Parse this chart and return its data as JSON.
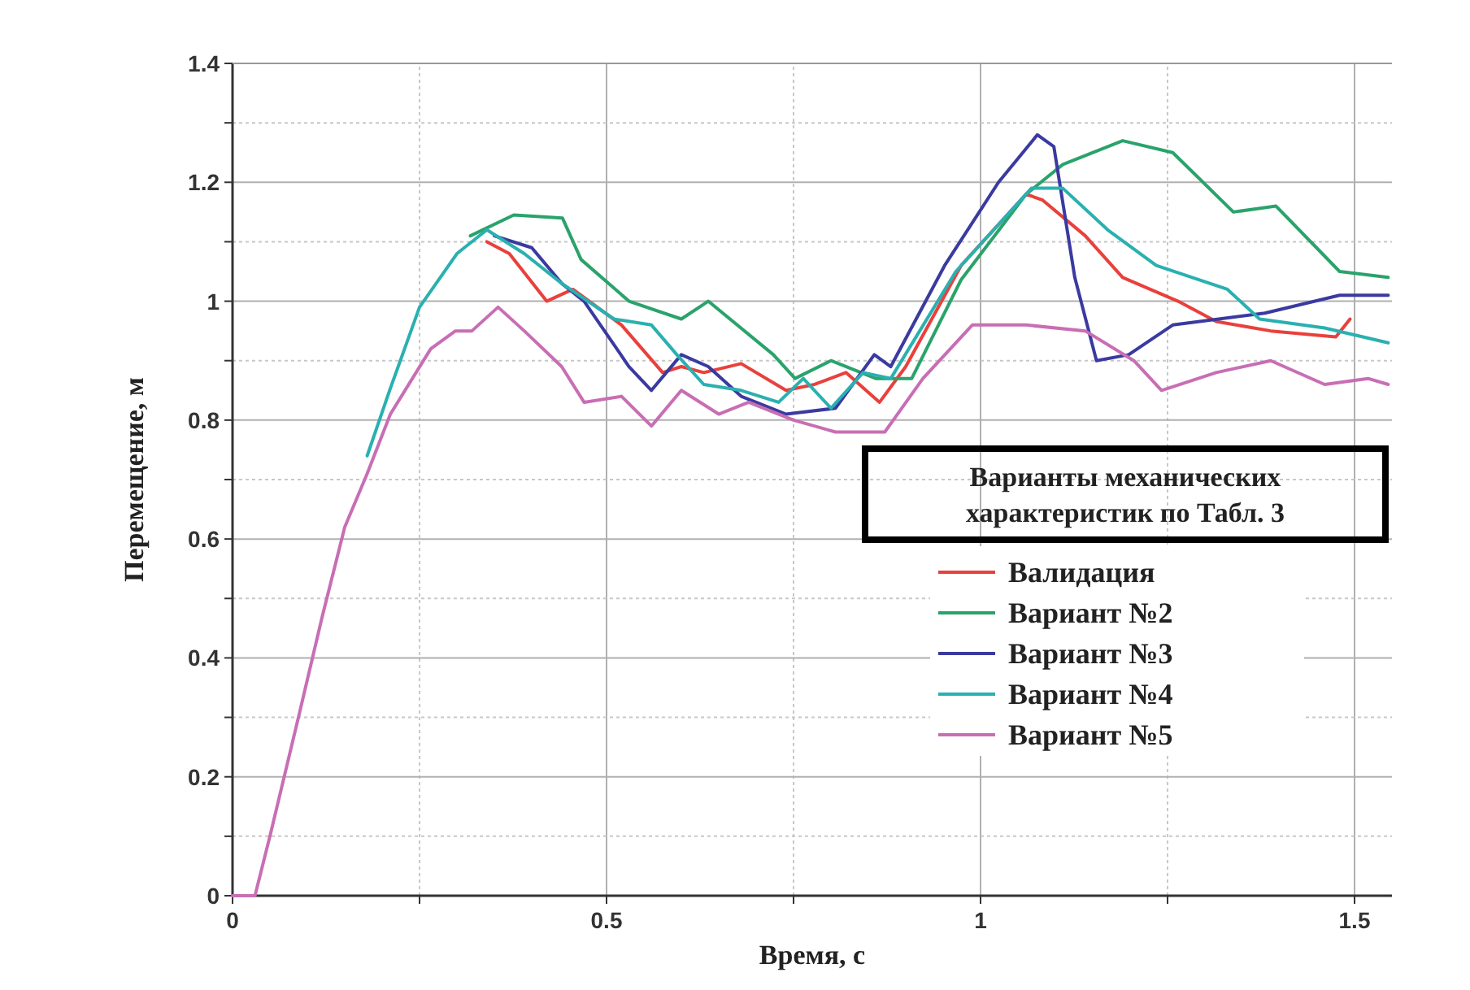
{
  "chart_data": {
    "type": "line",
    "xlabel": "Время, с",
    "ylabel": "Перемещение, м",
    "legend_title": "Варианты механических характеристик по Табл. 3",
    "legend": "bottom right",
    "grid": true,
    "line_style": "solid",
    "marker": "none",
    "xlim": [
      0,
      1.55
    ],
    "ylim": [
      0,
      1.4
    ],
    "xticks": [
      0,
      {
        "value": 0.25,
        "label": null
      },
      0.5,
      {
        "value": 0.75,
        "label": null
      },
      1,
      {
        "value": 1.25,
        "label": null
      },
      1.5
    ],
    "yticks": [
      0,
      {
        "value": 0.1,
        "label": null
      },
      0.2,
      {
        "value": 0.3,
        "label": null
      },
      0.4,
      {
        "value": 0.5,
        "label": null
      },
      0.6,
      {
        "value": 0.7,
        "label": null
      },
      0.8,
      {
        "value": 0.9,
        "label": null
      },
      1,
      {
        "value": 1.1,
        "label": null
      },
      1.2,
      {
        "value": 1.3,
        "label": null
      },
      1.4
    ],
    "series": [
      {
        "name": "Валидация",
        "color": "#e8413c",
        "x": [
          0.34,
          0.37,
          0.42,
          0.455,
          0.52,
          0.575,
          0.6,
          0.63,
          0.68,
          0.74,
          0.778,
          0.82,
          0.865,
          0.9,
          0.974,
          1.061,
          1.083,
          1.14,
          1.19,
          1.264,
          1.315,
          1.388,
          1.475,
          1.494
        ],
        "values": [
          1.1,
          1.08,
          1.0,
          1.02,
          0.96,
          0.88,
          0.89,
          0.88,
          0.895,
          0.85,
          0.86,
          0.88,
          0.83,
          0.89,
          1.06,
          1.18,
          1.17,
          1.11,
          1.04,
          1.0,
          0.966,
          0.95,
          0.94,
          0.97
        ]
      },
      {
        "name": "Вариант №2",
        "color": "#2aa36b",
        "x": [
          0.318,
          0.376,
          0.441,
          0.466,
          0.53,
          0.6,
          0.636,
          0.723,
          0.752,
          0.8,
          0.86,
          0.908,
          0.974,
          1.061,
          1.11,
          1.19,
          1.257,
          1.338,
          1.395,
          1.48,
          1.545
        ],
        "values": [
          1.11,
          1.145,
          1.14,
          1.07,
          1.0,
          0.97,
          1.0,
          0.91,
          0.87,
          0.9,
          0.87,
          0.87,
          1.036,
          1.18,
          1.23,
          1.27,
          1.25,
          1.15,
          1.16,
          1.05,
          1.04
        ]
      },
      {
        "name": "Вариант №3",
        "color": "#3a3aa0",
        "x": [
          0.35,
          0.4,
          0.44,
          0.47,
          0.53,
          0.56,
          0.6,
          0.636,
          0.68,
          0.74,
          0.806,
          0.858,
          0.88,
          0.952,
          1.024,
          1.076,
          1.098,
          1.126,
          1.155,
          1.198,
          1.257,
          1.38,
          1.48,
          1.545
        ],
        "values": [
          1.11,
          1.09,
          1.03,
          1.0,
          0.89,
          0.85,
          0.91,
          0.89,
          0.84,
          0.81,
          0.82,
          0.91,
          0.89,
          1.06,
          1.2,
          1.28,
          1.26,
          1.04,
          0.9,
          0.91,
          0.96,
          0.98,
          1.01,
          1.01
        ]
      },
      {
        "name": "Вариант №4",
        "color": "#2ab0b0",
        "x": [
          0.18,
          0.21,
          0.25,
          0.3,
          0.34,
          0.39,
          0.44,
          0.51,
          0.56,
          0.594,
          0.63,
          0.68,
          0.73,
          0.763,
          0.8,
          0.843,
          0.88,
          0.967,
          1.068,
          1.11,
          1.17,
          1.235,
          1.33,
          1.373,
          1.46,
          1.545
        ],
        "values": [
          0.74,
          0.85,
          0.99,
          1.08,
          1.12,
          1.08,
          1.03,
          0.97,
          0.96,
          0.91,
          0.86,
          0.85,
          0.83,
          0.87,
          0.82,
          0.88,
          0.87,
          1.05,
          1.19,
          1.19,
          1.12,
          1.06,
          1.02,
          0.97,
          0.955,
          0.93
        ]
      },
      {
        "name": "Вариант №5",
        "color": "#c86eb4",
        "x": [
          0,
          0.03,
          0.05,
          0.09,
          0.12,
          0.15,
          0.18,
          0.211,
          0.265,
          0.298,
          0.32,
          0.355,
          0.39,
          0.44,
          0.47,
          0.52,
          0.56,
          0.6,
          0.65,
          0.69,
          0.75,
          0.806,
          0.872,
          0.923,
          0.989,
          1.061,
          1.14,
          1.205,
          1.242,
          1.315,
          1.388,
          1.46,
          1.518,
          1.545
        ],
        "values": [
          0,
          0,
          0.1,
          0.31,
          0.47,
          0.62,
          0.71,
          0.81,
          0.92,
          0.95,
          0.95,
          0.99,
          0.95,
          0.89,
          0.83,
          0.84,
          0.79,
          0.85,
          0.81,
          0.83,
          0.8,
          0.78,
          0.78,
          0.87,
          0.96,
          0.96,
          0.95,
          0.9,
          0.85,
          0.88,
          0.9,
          0.86,
          0.87,
          0.86
        ]
      }
    ]
  }
}
